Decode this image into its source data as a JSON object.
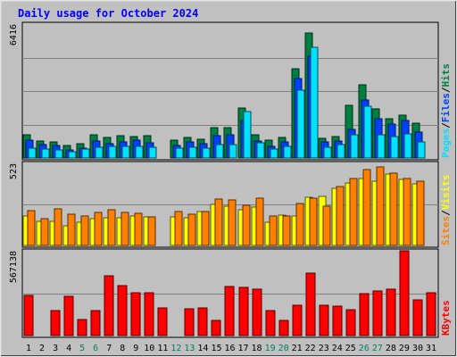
{
  "chart_data": {
    "type": "bar",
    "title": "Daily usage for October 2024",
    "categories": [
      "1",
      "2",
      "3",
      "4",
      "5",
      "6",
      "7",
      "8",
      "9",
      "10",
      "11",
      "12",
      "13",
      "14",
      "15",
      "16",
      "17",
      "18",
      "19",
      "20",
      "21",
      "22",
      "23",
      "24",
      "25",
      "26",
      "27",
      "28",
      "29",
      "30",
      "31"
    ],
    "weekend_days": [
      "5",
      "6",
      "12",
      "13",
      "19",
      "20",
      "26",
      "27"
    ],
    "panels": [
      {
        "id": "hits-files-pages",
        "ymax_label": "6416",
        "ymax": 6416,
        "legend": [
          {
            "label": "Pages",
            "color": "#00e0ff"
          },
          {
            "label": "Files",
            "color": "#0040ff"
          },
          {
            "label": "Hits",
            "color": "#008040"
          }
        ],
        "series": [
          {
            "name": "Hits",
            "color": "#008040",
            "values": [
              1100,
              820,
              780,
              590,
              700,
              1110,
              1000,
              1050,
              1040,
              1080,
              null,
              850,
              980,
              880,
              1450,
              1470,
              2380,
              1100,
              840,
              990,
              4260,
              5970,
              950,
              1020,
              2530,
              3490,
              2370,
              1890,
              2070,
              1650,
              null
            ]
          },
          {
            "name": "Files",
            "color": "#0040ff",
            "values": [
              870,
              650,
              580,
              370,
              470,
              800,
              700,
              760,
              840,
              710,
              null,
              620,
              760,
              670,
              1060,
              1130,
              1780,
              810,
              540,
              770,
              3800,
              4890,
              760,
              800,
              1390,
              2790,
              1880,
              1640,
              1810,
              1220,
              null
            ]
          },
          {
            "name": "Pages",
            "color": "#00e0ff",
            "values": [
              470,
              420,
              390,
              320,
              430,
              530,
              540,
              560,
              550,
              510,
              null,
              490,
              520,
              470,
              640,
              640,
              2230,
              730,
              420,
              570,
              3260,
              5310,
              520,
              640,
              1130,
              2500,
              1110,
              1040,
              1170,
              770,
              null
            ]
          }
        ]
      },
      {
        "id": "visits-sites",
        "ymax_label": "523",
        "ymax": 523,
        "legend": [
          {
            "label": "Sites",
            "color": "#ff8000"
          },
          {
            "label": "Visits",
            "color": "#ffff00"
          }
        ],
        "series": [
          {
            "name": "Visits",
            "color": "#ffff00",
            "values": [
              185,
              155,
              155,
              125,
              150,
              170,
              175,
              175,
              185,
              180,
              null,
              180,
              175,
              215,
              260,
              250,
              225,
              245,
              145,
              195,
              185,
              305,
              310,
              365,
              400,
              425,
              410,
              455,
              420,
              390,
              null
            ]
          },
          {
            "name": "Sites",
            "color": "#ff8000",
            "values": [
              220,
              170,
              235,
              200,
              190,
              210,
              225,
              210,
              205,
              180,
              null,
              215,
              200,
              215,
              295,
              290,
              255,
              300,
              190,
              185,
              270,
              300,
              250,
              375,
              425,
              485,
              500,
              460,
              425,
              410,
              null
            ]
          }
        ]
      },
      {
        "id": "kbytes",
        "ymax_label": "567138",
        "ymax": 567138,
        "legend": [
          {
            "label": "KBytes",
            "color": "#ff0000"
          }
        ],
        "series": [
          {
            "name": "KBytes",
            "color": "#ff0000",
            "values": [
              270000,
              null,
              165000,
              260000,
              105000,
              165000,
              400000,
              335000,
              285000,
              285000,
              185000,
              null,
              180000,
              185000,
              100000,
              330000,
              325000,
              310000,
              165000,
              100000,
              200000,
              420000,
              200000,
              195000,
              175000,
              280000,
              300000,
              310000,
              567138,
              240000,
              285000
            ]
          }
        ]
      }
    ]
  }
}
